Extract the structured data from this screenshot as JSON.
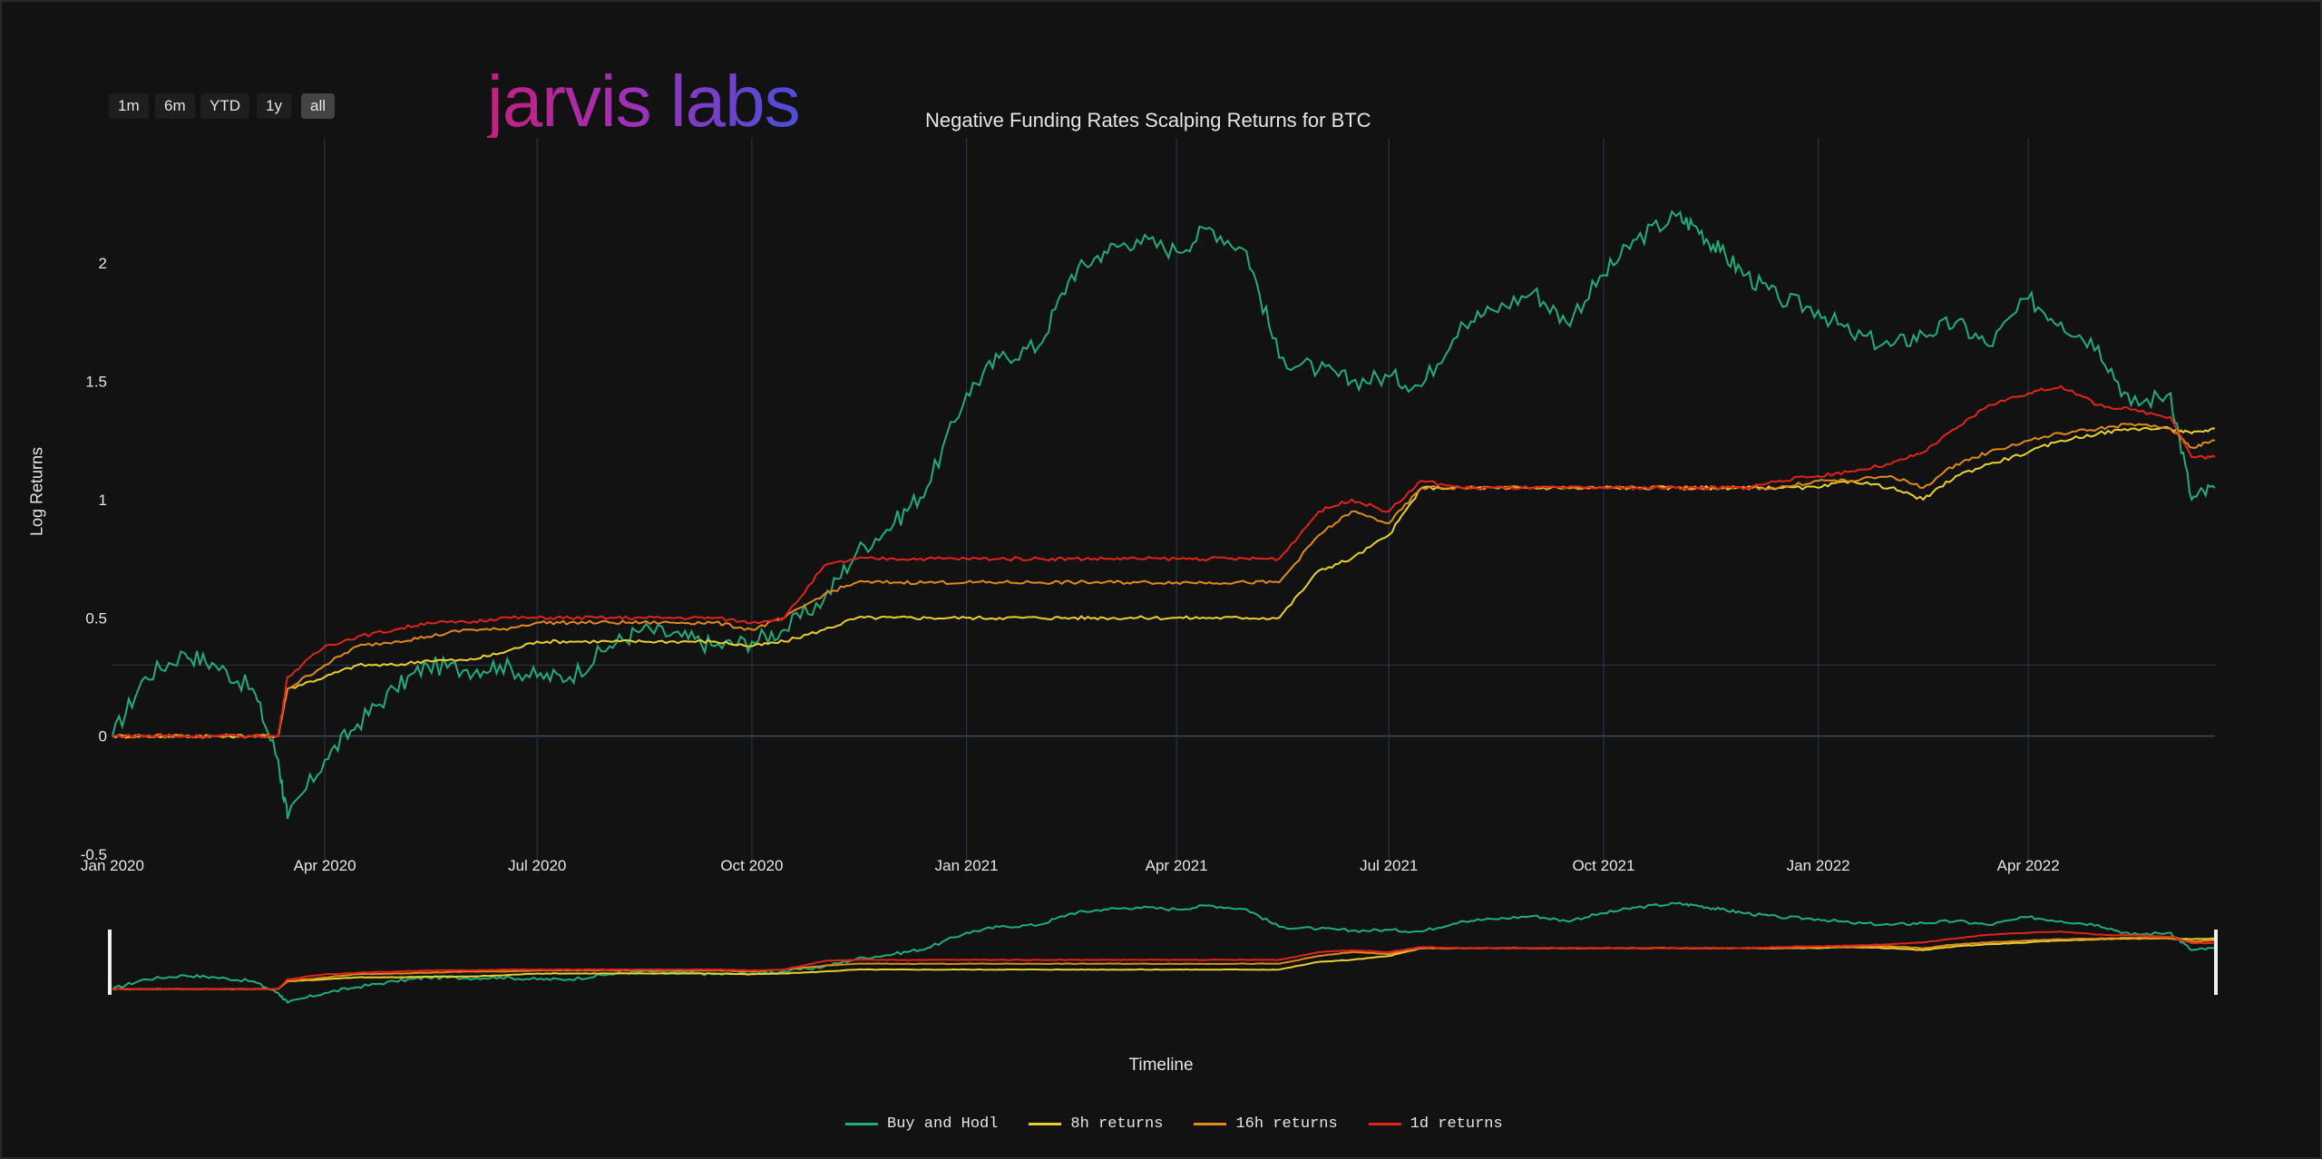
{
  "range_buttons": [
    "1m",
    "6m",
    "YTD",
    "1y",
    "all"
  ],
  "active_range": "all",
  "logo_text": "jarvis labs",
  "colors": {
    "background": "#121212",
    "grid": "#2b3a48",
    "buy_and_hodl": "#1fae7a",
    "r8h": "#e8d030",
    "r16h": "#e08a1e",
    "r1d": "#e0241a"
  },
  "chart_data": {
    "type": "line",
    "title": "Negative Funding Rates Scalping Returns for BTC",
    "xlabel": "",
    "ylabel": "Log Returns",
    "range_slider_label": "Timeline",
    "xlim": [
      "2020-01-01",
      "2022-06-20"
    ],
    "ylim": [
      -0.5,
      2.3
    ],
    "grid": true,
    "legend_position": "bottom",
    "x_ticks": [
      "Jan 2020",
      "Apr 2020",
      "Jul 2020",
      "Oct 2020",
      "Jan 2021",
      "Apr 2021",
      "Jul 2021",
      "Oct 2021",
      "Jan 2022",
      "Apr 2022"
    ],
    "y_ticks": [
      "-0.5",
      "0",
      "0.5",
      "1",
      "1.5",
      "2"
    ],
    "dates": [
      "2020-01-01",
      "2020-01-15",
      "2020-02-01",
      "2020-02-14",
      "2020-03-01",
      "2020-03-12",
      "2020-03-16",
      "2020-04-01",
      "2020-04-15",
      "2020-05-01",
      "2020-05-15",
      "2020-06-01",
      "2020-06-15",
      "2020-07-01",
      "2020-07-15",
      "2020-08-01",
      "2020-08-15",
      "2020-09-01",
      "2020-09-15",
      "2020-10-01",
      "2020-10-15",
      "2020-11-01",
      "2020-11-15",
      "2020-12-01",
      "2020-12-15",
      "2021-01-01",
      "2021-01-15",
      "2021-02-01",
      "2021-02-15",
      "2021-03-01",
      "2021-03-15",
      "2021-04-01",
      "2021-04-15",
      "2021-05-01",
      "2021-05-15",
      "2021-06-01",
      "2021-06-15",
      "2021-07-01",
      "2021-07-15",
      "2021-08-01",
      "2021-08-15",
      "2021-09-01",
      "2021-09-15",
      "2021-10-01",
      "2021-10-15",
      "2021-11-01",
      "2021-11-10",
      "2021-11-20",
      "2021-12-01",
      "2021-12-15",
      "2022-01-01",
      "2022-01-15",
      "2022-02-01",
      "2022-02-15",
      "2022-03-01",
      "2022-03-15",
      "2022-04-01",
      "2022-04-15",
      "2022-05-01",
      "2022-05-15",
      "2022-06-01",
      "2022-06-10",
      "2022-06-20"
    ],
    "series": [
      {
        "name": "Buy and Hodl",
        "values": [
          0.0,
          0.25,
          0.35,
          0.3,
          0.2,
          -0.1,
          -0.35,
          -0.1,
          0.05,
          0.2,
          0.3,
          0.28,
          0.3,
          0.25,
          0.25,
          0.38,
          0.45,
          0.42,
          0.38,
          0.4,
          0.45,
          0.58,
          0.78,
          0.9,
          1.05,
          1.45,
          1.6,
          1.65,
          1.95,
          2.05,
          2.1,
          2.05,
          2.15,
          2.05,
          1.6,
          1.55,
          1.5,
          1.52,
          1.48,
          1.75,
          1.8,
          1.88,
          1.75,
          1.95,
          2.1,
          2.2,
          2.15,
          2.05,
          1.95,
          1.85,
          1.8,
          1.7,
          1.65,
          1.7,
          1.75,
          1.65,
          1.85,
          1.75,
          1.65,
          1.4,
          1.45,
          1.0,
          1.05
        ]
      },
      {
        "name": "8h returns",
        "values": [
          0.0,
          0.0,
          0.0,
          0.0,
          0.0,
          0.0,
          0.2,
          0.25,
          0.3,
          0.3,
          0.32,
          0.32,
          0.35,
          0.4,
          0.4,
          0.4,
          0.4,
          0.4,
          0.4,
          0.38,
          0.4,
          0.45,
          0.5,
          0.5,
          0.5,
          0.5,
          0.5,
          0.5,
          0.5,
          0.5,
          0.5,
          0.5,
          0.5,
          0.5,
          0.5,
          0.7,
          0.75,
          0.85,
          1.05,
          1.05,
          1.05,
          1.05,
          1.05,
          1.05,
          1.05,
          1.05,
          1.05,
          1.05,
          1.05,
          1.05,
          1.05,
          1.08,
          1.05,
          1.0,
          1.1,
          1.15,
          1.2,
          1.25,
          1.28,
          1.3,
          1.3,
          1.28,
          1.3
        ]
      },
      {
        "name": "16h returns",
        "values": [
          0.0,
          0.0,
          0.0,
          0.0,
          0.0,
          0.0,
          0.2,
          0.3,
          0.38,
          0.4,
          0.42,
          0.45,
          0.45,
          0.48,
          0.48,
          0.48,
          0.48,
          0.48,
          0.48,
          0.45,
          0.5,
          0.6,
          0.65,
          0.65,
          0.65,
          0.65,
          0.65,
          0.65,
          0.65,
          0.65,
          0.65,
          0.65,
          0.65,
          0.65,
          0.65,
          0.85,
          0.95,
          0.9,
          1.05,
          1.05,
          1.05,
          1.05,
          1.05,
          1.05,
          1.05,
          1.05,
          1.05,
          1.05,
          1.05,
          1.05,
          1.08,
          1.08,
          1.1,
          1.05,
          1.15,
          1.2,
          1.25,
          1.28,
          1.3,
          1.32,
          1.3,
          1.22,
          1.25
        ]
      },
      {
        "name": "1d returns",
        "values": [
          0.0,
          0.0,
          0.0,
          0.0,
          0.0,
          0.0,
          0.25,
          0.38,
          0.42,
          0.45,
          0.48,
          0.48,
          0.5,
          0.5,
          0.5,
          0.5,
          0.5,
          0.5,
          0.5,
          0.48,
          0.5,
          0.72,
          0.75,
          0.75,
          0.75,
          0.75,
          0.75,
          0.75,
          0.75,
          0.75,
          0.75,
          0.75,
          0.75,
          0.75,
          0.75,
          0.95,
          1.0,
          0.95,
          1.08,
          1.05,
          1.05,
          1.05,
          1.05,
          1.05,
          1.05,
          1.05,
          1.05,
          1.05,
          1.05,
          1.08,
          1.1,
          1.12,
          1.15,
          1.2,
          1.3,
          1.4,
          1.45,
          1.48,
          1.4,
          1.38,
          1.35,
          1.18,
          1.18
        ]
      }
    ]
  }
}
